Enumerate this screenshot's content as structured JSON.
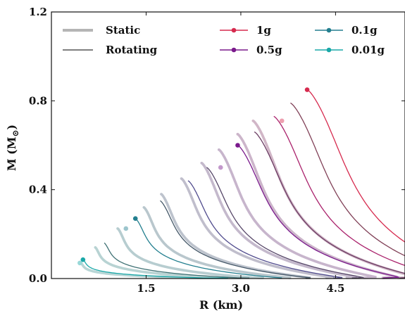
{
  "chart_data": {
    "type": "line",
    "xlabel": "R (km)",
    "ylabel": "M (M",
    "ylabel_symbol": "⊙",
    "ylabel_suffix": ")",
    "xlim": [
      0.0,
      5.6
    ],
    "ylim": [
      0.0,
      1.2
    ],
    "x_ticks": [
      1.5,
      3.0,
      4.5
    ],
    "x_tick_labels": [
      "1.5",
      "3.0",
      "4.5"
    ],
    "y_ticks": [
      0.0,
      0.4,
      0.8,
      1.2
    ],
    "y_tick_labels": [
      "0.0",
      "0.4",
      "0.8",
      "1.2"
    ],
    "grid": false,
    "legend": {
      "placement": "top",
      "style_entries": [
        {
          "label": "Static",
          "style": "thick-gray"
        },
        {
          "label": "Rotating",
          "style": "thin-dark"
        }
      ],
      "color_entries": [
        {
          "label": "1g",
          "color": "#d62a4e"
        },
        {
          "label": "0.5g",
          "color": "#7a1a8c"
        },
        {
          "label": "0.1g",
          "color": "#237f8f"
        },
        {
          "label": "0.01g",
          "color": "#1aa8a8"
        }
      ]
    },
    "series": [
      {
        "name": "1g",
        "color": "#d62a4e",
        "rotating_max": {
          "r": 4.05,
          "m": 0.85
        },
        "static_max": {
          "r": 3.65,
          "m": 0.71
        }
      },
      {
        "name": "0.5g",
        "color": "#7a1a8c",
        "rotating_max": {
          "r": 2.95,
          "m": 0.6
        },
        "static_max": {
          "r": 2.68,
          "m": 0.5
        }
      },
      {
        "name": "0.1g",
        "color": "#237f8f",
        "rotating_max": {
          "r": 1.33,
          "m": 0.27
        },
        "static_max": {
          "r": 1.18,
          "m": 0.225
        }
      },
      {
        "name": "0.01g",
        "color": "#1aa8a8",
        "rotating_max": {
          "r": 0.5,
          "m": 0.085
        },
        "static_max": {
          "r": 0.45,
          "m": 0.07
        }
      }
    ]
  }
}
